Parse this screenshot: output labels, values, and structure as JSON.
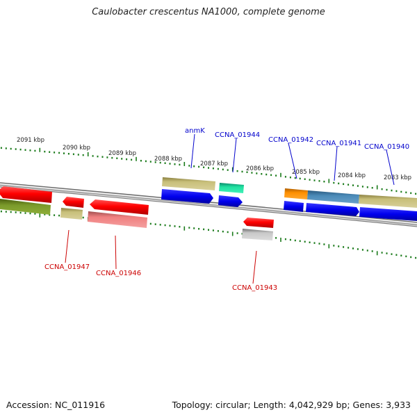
{
  "title": "Caulobacter crescentus NA1000, complete genome",
  "footer": {
    "accession": "Accession: NC_011916",
    "summary": "Topology: circular; Length: 4,042,929 bp; Genes: 3,933"
  },
  "colors": {
    "backbone": "#8a8a8a",
    "tick": "#1a7a1a",
    "label_forward": "#0000cc",
    "label_reverse": "#cc0000"
  },
  "ruler_outer_labels": [
    "2091 kbp",
    "2090 kbp",
    "2089 kbp",
    "2088 kbp",
    "2087 kbp",
    "2086 kbp",
    "2085 kbp",
    "2084 kbp",
    "2083 kbp"
  ],
  "gene_labels": {
    "forward": [
      "anmK",
      "CCNA_01944",
      "CCNA_01942",
      "CCNA_01941",
      "CCNA_01940"
    ],
    "reverse": [
      "CCNA_01947",
      "CCNA_01946",
      "CCNA_01943"
    ]
  }
}
